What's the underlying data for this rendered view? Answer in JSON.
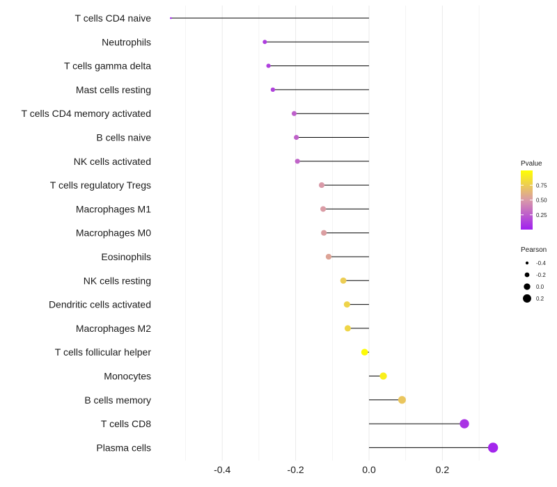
{
  "chart_data": {
    "type": "lollipop",
    "x_label": "",
    "y_label": "",
    "xlim": [
      -0.56,
      0.34
    ],
    "x_ticks": [
      -0.4,
      -0.2,
      0.0,
      0.2
    ],
    "x_tick_labels": [
      "-0.4",
      "-0.2",
      "0.0",
      "0.2"
    ],
    "categories": [
      "T cells CD4 naive",
      "Neutrophils",
      "T cells gamma delta",
      "Mast cells resting",
      "T cells CD4 memory activated",
      "B cells naive",
      "NK cells activated",
      "T cells regulatory  Tregs ",
      "Macrophages M1",
      "Macrophages M0",
      "Eosinophils",
      "NK cells resting",
      "Dendritic cells activated",
      "Macrophages M2",
      "T cells follicular helper",
      "Monocytes",
      "B cells memory",
      "T cells CD8",
      "Plasma cells"
    ],
    "pearson": [
      -0.54,
      -0.284,
      -0.274,
      -0.262,
      -0.204,
      -0.198,
      -0.195,
      -0.129,
      -0.125,
      -0.123,
      -0.11,
      -0.07,
      -0.06,
      -0.058,
      -0.012,
      0.039,
      0.09,
      0.26,
      0.338
    ],
    "pvalue": [
      0.01,
      0.12,
      0.13,
      0.14,
      0.26,
      0.27,
      0.28,
      0.5,
      0.51,
      0.52,
      0.55,
      0.75,
      0.78,
      0.79,
      0.98,
      0.92,
      0.72,
      0.08,
      0.03
    ],
    "legend_color": {
      "title": "Pvalue",
      "ticks": [
        0.75,
        0.5,
        0.25
      ],
      "tick_labels": [
        "0.75",
        "0.50",
        "0.25"
      ],
      "range": [
        0.0,
        1.0
      ],
      "color_low": "#a020f0",
      "color_high": "#ffff00"
    },
    "legend_size": {
      "title": "Pearson",
      "values": [
        -0.4,
        -0.2,
        0.0,
        0.2
      ],
      "labels": [
        "-0.4",
        "-0.2",
        "0.0",
        "0.2"
      ]
    },
    "colors": {
      "stem": "#000000",
      "grid": "#ebebeb"
    }
  }
}
